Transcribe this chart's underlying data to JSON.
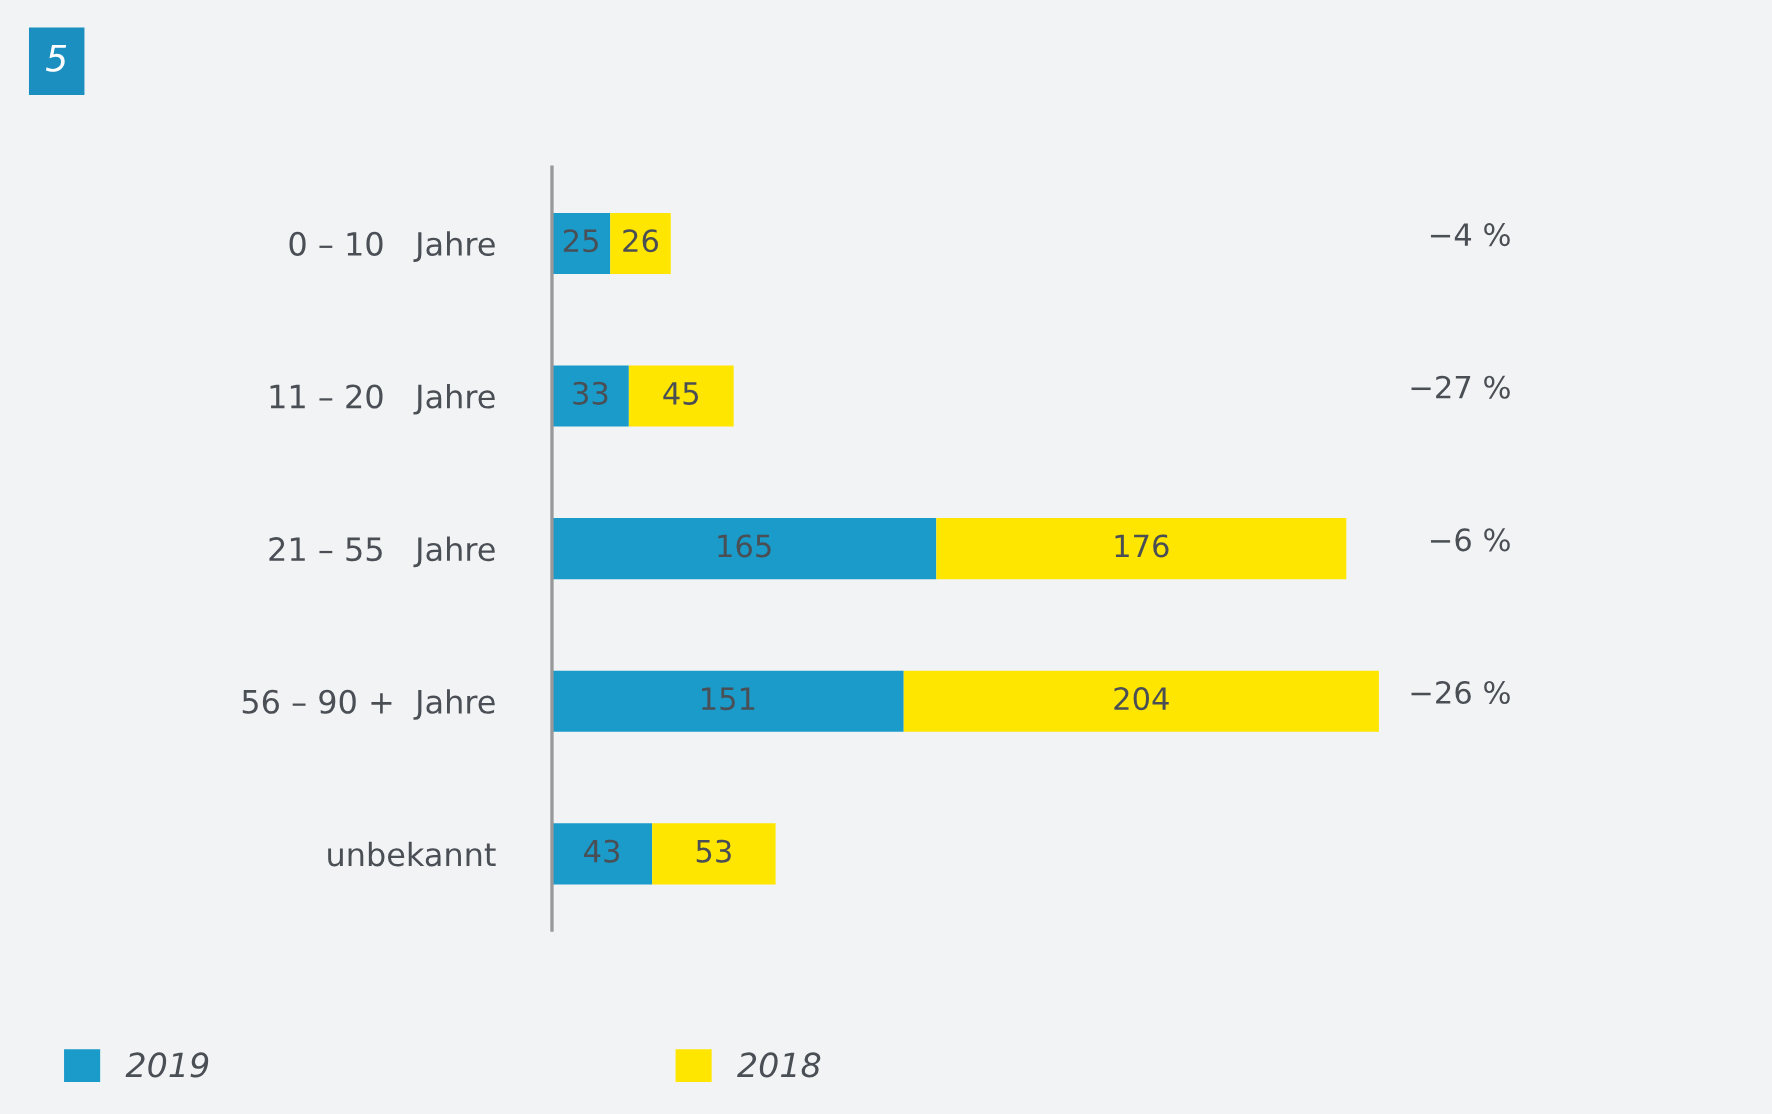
{
  "chart_data": {
    "type": "bar",
    "orientation": "horizontal",
    "stacked": true,
    "title": "5",
    "categories": [
      "0 – 10   Jahre",
      "11 – 20   Jahre",
      "21 – 55   Jahre",
      "56 – 90 +  Jahre",
      "unbekannt"
    ],
    "series": [
      {
        "name": "2019",
        "color": "#1a9bc9",
        "values": [
          25,
          33,
          165,
          151,
          43
        ]
      },
      {
        "name": "2018",
        "color": "#ffe600",
        "values": [
          26,
          45,
          176,
          204,
          53
        ]
      }
    ],
    "data_labels": true,
    "legend": "bottom left",
    "grid": false,
    "annotations": [
      "−4 %",
      "−27 %",
      "−6 %",
      "−26 %"
    ]
  }
}
